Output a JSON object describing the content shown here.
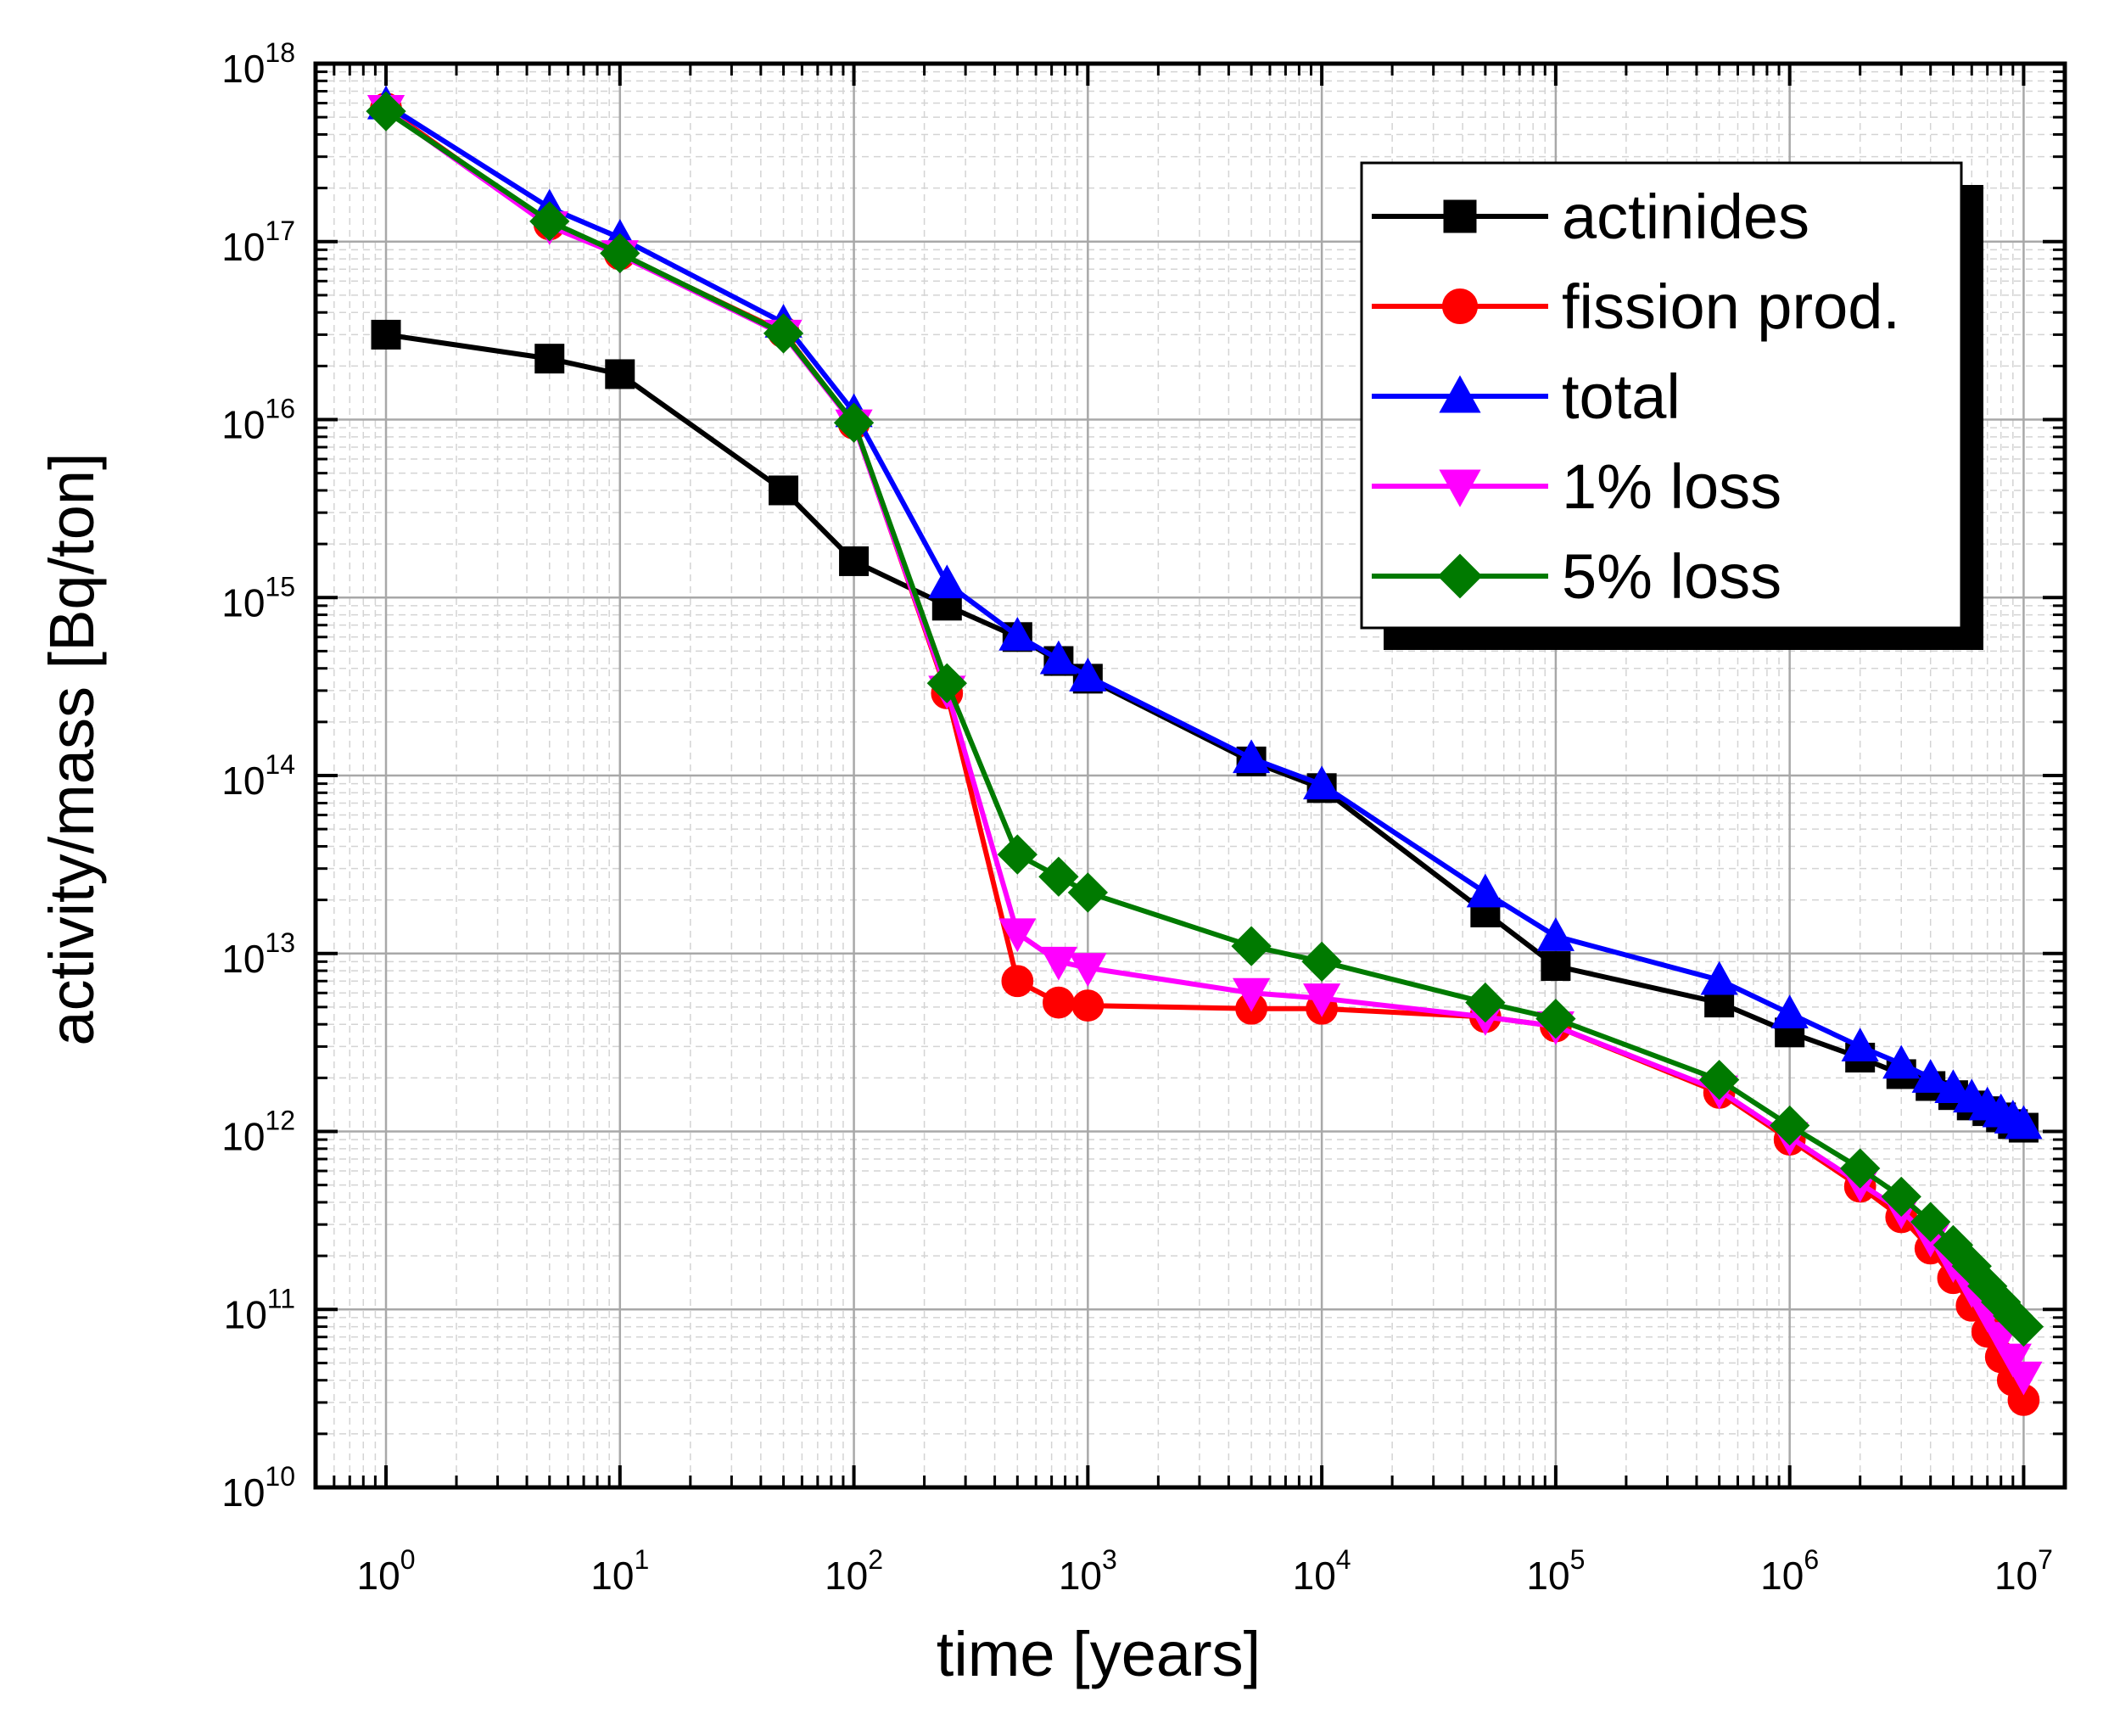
{
  "chart_data": {
    "type": "line",
    "x_scale": "log",
    "y_scale": "log",
    "xlim": [
      0.5,
      15000000
    ],
    "ylim": [
      10000000000.0,
      1e+18
    ],
    "xlabel": "time [years]",
    "ylabel": "activity/mass [Bq/ton]",
    "grid": true,
    "legend_position": "top-right",
    "x_ticks": [
      {
        "base": "10",
        "exp": "0",
        "value": 1
      },
      {
        "base": "10",
        "exp": "1",
        "value": 10
      },
      {
        "base": "10",
        "exp": "2",
        "value": 100
      },
      {
        "base": "10",
        "exp": "3",
        "value": 1000
      },
      {
        "base": "10",
        "exp": "4",
        "value": 10000
      },
      {
        "base": "10",
        "exp": "5",
        "value": 100000
      },
      {
        "base": "10",
        "exp": "6",
        "value": 1000000
      },
      {
        "base": "10",
        "exp": "7",
        "value": 10000000
      }
    ],
    "y_ticks": [
      {
        "base": "10",
        "exp": "10",
        "value": 10000000000.0
      },
      {
        "base": "10",
        "exp": "11",
        "value": 100000000000.0
      },
      {
        "base": "10",
        "exp": "12",
        "value": 1000000000000.0
      },
      {
        "base": "10",
        "exp": "13",
        "value": 10000000000000.0
      },
      {
        "base": "10",
        "exp": "14",
        "value": 100000000000000.0
      },
      {
        "base": "10",
        "exp": "15",
        "value": 1000000000000000.0
      },
      {
        "base": "10",
        "exp": "16",
        "value": 1e+16
      },
      {
        "base": "10",
        "exp": "17",
        "value": 1e+17
      },
      {
        "base": "10",
        "exp": "18",
        "value": 1e+18
      }
    ],
    "x": [
      1,
      5,
      10,
      50,
      100,
      250,
      500,
      750,
      1000,
      5000,
      10000,
      50000,
      100000,
      500000,
      1000000,
      2000000,
      3000000,
      4000000,
      5000000,
      6000000,
      7000000,
      8000000,
      9000000,
      10000000
    ],
    "series": [
      {
        "name": "actinides",
        "color": "#000000",
        "marker": "square",
        "values": [
          3e+16,
          2.2e+16,
          1.8e+16,
          4000000000000000.0,
          1600000000000000.0,
          900000000000000.0,
          600000000000000.0,
          440000000000000.0,
          350000000000000.0,
          120000000000000.0,
          85000000000000.0,
          17000000000000.0,
          8500000000000.0,
          5300000000000.0,
          3600000000000.0,
          2600000000000.0,
          2100000000000.0,
          1800000000000.0,
          1600000000000.0,
          1400000000000.0,
          1300000000000.0,
          1200000000000.0,
          1100000000000.0,
          1050000000000.0
        ]
      },
      {
        "name": "fission prod.",
        "color": "#ff0000",
        "marker": "circle",
        "values": [
          5.6e+17,
          1.25e+17,
          8.5e+16,
          3.1e+16,
          9500000000000000.0,
          290000000000000.0,
          7000000000000.0,
          5300000000000.0,
          5100000000000.0,
          4900000000000.0,
          4900000000000.0,
          4400000000000.0,
          3900000000000.0,
          1650000000000.0,
          900000000000.0,
          490000000000.0,
          330000000000.0,
          220000000000.0,
          150000000000.0,
          105000000000.0,
          75000000000.0,
          54000000000.0,
          40000000000.0,
          31000000000.0
        ]
      },
      {
        "name": "total",
        "color": "#0000ff",
        "marker": "triangle-up",
        "values": [
          5.9e+17,
          1.55e+17,
          1.05e+17,
          3.5e+16,
          1.1e+16,
          1200000000000000.0,
          610000000000000.0,
          450000000000000.0,
          360000000000000.0,
          125000000000000.0,
          89000000000000.0,
          22000000000000.0,
          12500000000000.0,
          7100000000000.0,
          4600000000000.0,
          3000000000000.0,
          2400000000000.0,
          2000000000000.0,
          1750000000000.0,
          1550000000000.0,
          1400000000000.0,
          1280000000000.0,
          1180000000000.0,
          1100000000000.0
        ]
      },
      {
        "name": "1% loss",
        "color": "#ff00ff",
        "marker": "triangle-down",
        "values": [
          5.5e+17,
          1.22e+17,
          8.4e+16,
          3e+16,
          9400000000000000.0,
          300000000000000.0,
          13000000000000.0,
          9000000000000.0,
          8300000000000.0,
          6000000000000.0,
          5600000000000.0,
          4400000000000.0,
          3900000000000.0,
          1700000000000.0,
          930000000000.0,
          510000000000.0,
          360000000000.0,
          250000000000.0,
          180000000000.0,
          130000000000.0,
          95000000000.0,
          70000000000.0,
          53000000000.0,
          42000000000.0
        ]
      },
      {
        "name": "5% loss",
        "color": "#007a00",
        "marker": "diamond",
        "values": [
          5.4e+17,
          1.3e+17,
          8.6e+16,
          3.05e+16,
          9600000000000000.0,
          330000000000000.0,
          36000000000000.0,
          27000000000000.0,
          22000000000000.0,
          11000000000000.0,
          9000000000000.0,
          5300000000000.0,
          4300000000000.0,
          1950000000000.0,
          1080000000000.0,
          620000000000.0,
          430000000000.0,
          310000000000.0,
          230000000000.0,
          175000000000.0,
          135000000000.0,
          110000000000.0,
          92000000000.0,
          80000000000.0
        ]
      }
    ]
  }
}
